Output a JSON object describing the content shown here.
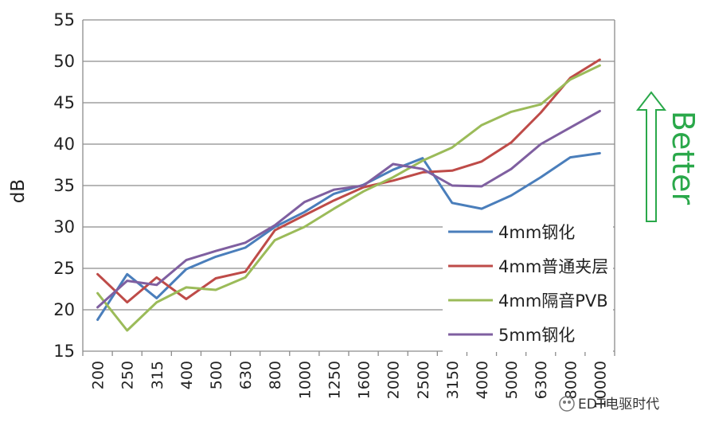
{
  "chart_data": {
    "type": "line",
    "title": "",
    "xlabel": "",
    "ylabel": "dB",
    "ylim": [
      15,
      55
    ],
    "yticks": [
      "15",
      "20",
      "25",
      "30",
      "35",
      "40",
      "45",
      "50",
      "55"
    ],
    "grid": "horizontal",
    "legend_position": "right",
    "categories": [
      "200",
      "250",
      "315",
      "400",
      "500",
      "630",
      "800",
      "1000",
      "1250",
      "1600",
      "2000",
      "2500",
      "3150",
      "4000",
      "5000",
      "6300",
      "8000",
      "10000"
    ],
    "series": [
      {
        "name": "4mm钢化",
        "color": "#4a7ebb",
        "values": [
          18.8,
          24.3,
          21.4,
          24.9,
          26.4,
          27.5,
          30.0,
          31.8,
          34.0,
          35.1,
          36.9,
          38.3,
          32.9,
          32.2,
          33.8,
          36.0,
          38.4,
          38.9
        ]
      },
      {
        "name": "4mm普通夹层",
        "color": "#be4b48",
        "values": [
          24.3,
          20.9,
          23.9,
          21.3,
          23.8,
          24.6,
          29.6,
          31.4,
          33.2,
          34.8,
          35.6,
          36.6,
          36.8,
          37.9,
          40.2,
          43.8,
          48.0,
          50.2
        ]
      },
      {
        "name": "4mm隔音PVB",
        "color": "#9bbb59",
        "values": [
          22.0,
          17.5,
          20.9,
          22.7,
          22.4,
          23.9,
          28.4,
          30.0,
          32.2,
          34.3,
          36.0,
          38.0,
          39.6,
          42.3,
          43.9,
          44.8,
          47.8,
          49.5
        ]
      },
      {
        "name": "5mm钢化",
        "color": "#7f5fa0",
        "values": [
          20.3,
          23.5,
          23.0,
          26.0,
          27.1,
          28.1,
          30.2,
          33.0,
          34.5,
          35.0,
          37.6,
          37.0,
          35.0,
          34.9,
          37.0,
          40.0,
          42.0,
          44.0
        ]
      }
    ],
    "annotation": "Better"
  },
  "watermark": "EDT电驱时代"
}
